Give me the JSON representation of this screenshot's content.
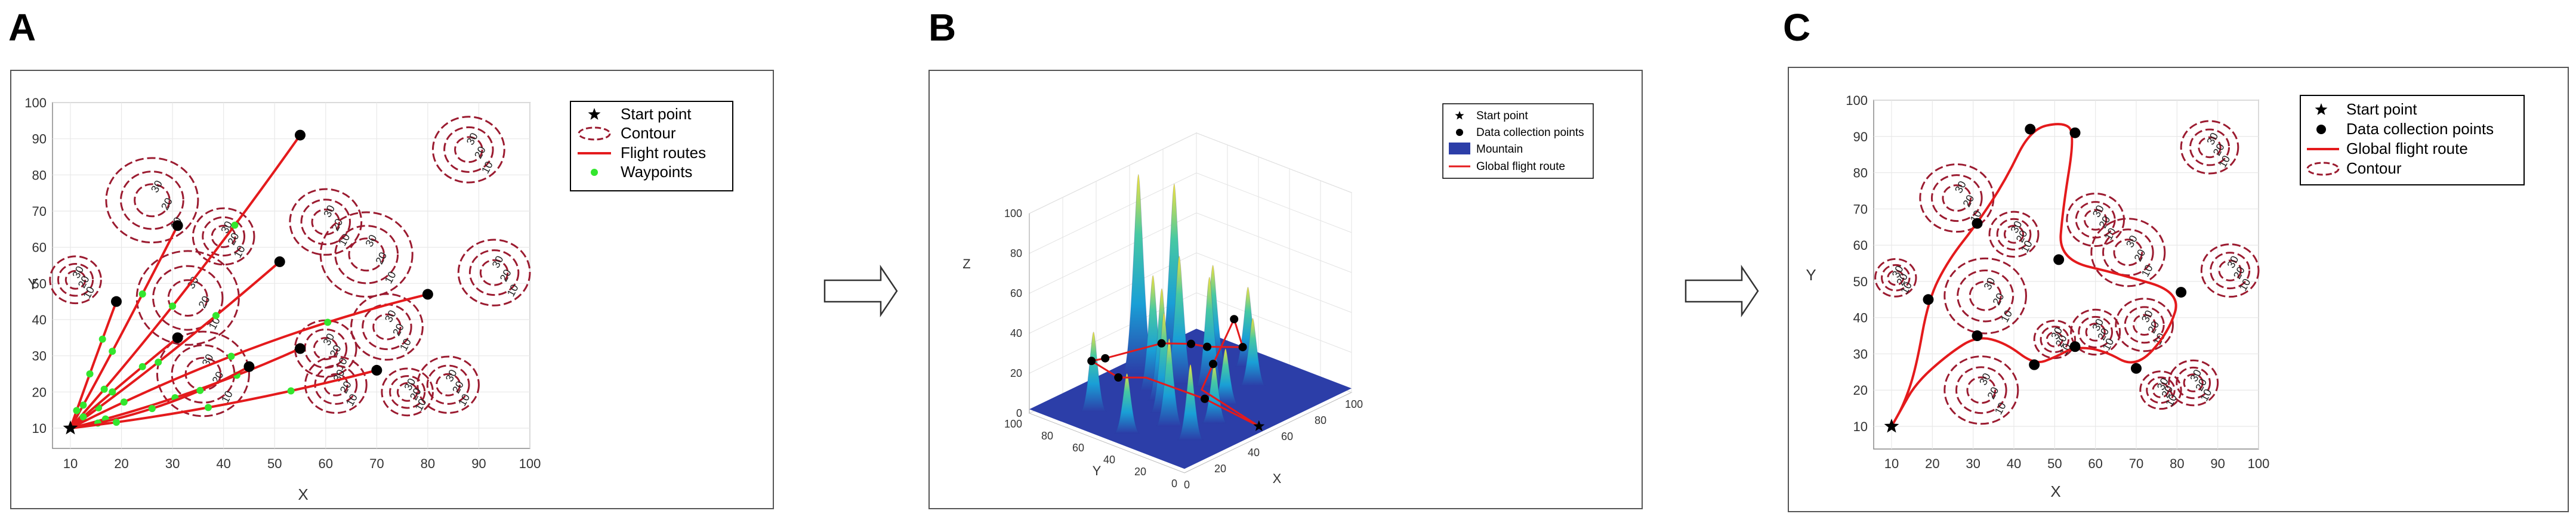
{
  "panels": {
    "a": {
      "letter": "A"
    },
    "b": {
      "letter": "B"
    },
    "c": {
      "letter": "C"
    }
  },
  "colors": {
    "route": "#e41a1c",
    "contour": "#9b1b30",
    "waypoint": "#33e62e",
    "point": "#000000",
    "surface_low": "#2c3ea8",
    "surface_high": "#f5e43a"
  },
  "chart_data": [
    {
      "panel": "A",
      "type": "line",
      "xlabel": "X",
      "ylabel": "Y",
      "xlim": [
        0,
        100
      ],
      "ylim": [
        0,
        100
      ],
      "xticks": [
        "10",
        "20",
        "30",
        "40",
        "50",
        "60",
        "70",
        "80",
        "90",
        "100"
      ],
      "yticks": [
        "10",
        "20",
        "30",
        "40",
        "50",
        "60",
        "70",
        "80",
        "90",
        "100"
      ],
      "grid": true,
      "legend_position": "top-right",
      "legend": [
        "Start point",
        "Contour",
        "Flight routes",
        "Waypoints"
      ],
      "start": [
        10,
        10
      ],
      "contour_level_labels": [
        "10",
        "20",
        "30"
      ],
      "contours": [
        {
          "cx": 26,
          "cy": 73,
          "r": 9
        },
        {
          "cx": 40,
          "cy": 63,
          "r": 6
        },
        {
          "cx": 11,
          "cy": 51,
          "r": 5
        },
        {
          "cx": 33,
          "cy": 46,
          "r": 10
        },
        {
          "cx": 36,
          "cy": 25,
          "r": 9
        },
        {
          "cx": 60,
          "cy": 67,
          "r": 7
        },
        {
          "cx": 68,
          "cy": 58,
          "r": 9
        },
        {
          "cx": 72,
          "cy": 38,
          "r": 7
        },
        {
          "cx": 60,
          "cy": 32,
          "r": 6
        },
        {
          "cx": 62,
          "cy": 22,
          "r": 6
        },
        {
          "cx": 93,
          "cy": 53,
          "r": 7
        },
        {
          "cx": 88,
          "cy": 87,
          "r": 7
        },
        {
          "cx": 84,
          "cy": 22,
          "r": 6
        },
        {
          "cx": 76,
          "cy": 20,
          "r": 5
        }
      ],
      "routes": [
        {
          "end": [
            55,
            91
          ],
          "ctrl": [
            32,
            45
          ]
        },
        {
          "end": [
            31,
            66
          ],
          "ctrl": [
            18,
            30
          ]
        },
        {
          "end": [
            19,
            45
          ],
          "ctrl": [
            14,
            26
          ]
        },
        {
          "end": [
            51,
            56
          ],
          "ctrl": [
            28,
            28
          ]
        },
        {
          "end": [
            31,
            35
          ],
          "ctrl": [
            18,
            20
          ]
        },
        {
          "end": [
            55,
            32
          ],
          "ctrl": [
            33,
            18
          ]
        },
        {
          "end": [
            45,
            27
          ],
          "ctrl": [
            28,
            14
          ]
        },
        {
          "end": [
            70,
            26
          ],
          "ctrl": [
            40,
            15
          ]
        },
        {
          "end": [
            80,
            47
          ],
          "ctrl": [
            45,
            35
          ]
        }
      ]
    },
    {
      "panel": "B",
      "type": "surface",
      "xlabel": "X",
      "ylabel": "Y",
      "zlabel": "Z",
      "xlim": [
        0,
        100
      ],
      "ylim": [
        0,
        100
      ],
      "zlim": [
        0,
        100
      ],
      "xticks": [
        "0",
        "20",
        "40",
        "60",
        "80",
        "100"
      ],
      "yticks": [
        "0",
        "20",
        "40",
        "60",
        "80",
        "100"
      ],
      "zticks": [
        "0",
        "20",
        "40",
        "60",
        "80",
        "100"
      ],
      "grid": true,
      "legend_position": "top-right",
      "legend": [
        "Start point",
        "Data collection points",
        "Mountain",
        "Global flight route"
      ],
      "peaks": [
        {
          "x": 56,
          "y": 90,
          "h": 100
        },
        {
          "x": 70,
          "y": 82,
          "h": 92
        },
        {
          "x": 60,
          "y": 68,
          "h": 64
        },
        {
          "x": 44,
          "y": 62,
          "h": 56
        },
        {
          "x": 36,
          "y": 52,
          "h": 50
        },
        {
          "x": 48,
          "y": 72,
          "h": 58
        },
        {
          "x": 28,
          "y": 40,
          "h": 44
        },
        {
          "x": 66,
          "y": 55,
          "h": 55
        },
        {
          "x": 82,
          "y": 70,
          "h": 50
        },
        {
          "x": 18,
          "y": 78,
          "h": 40
        },
        {
          "x": 24,
          "y": 22,
          "h": 38
        },
        {
          "x": 42,
          "y": 26,
          "h": 30
        },
        {
          "x": 58,
          "y": 36,
          "h": 28
        },
        {
          "x": 78,
          "y": 40,
          "h": 34
        },
        {
          "x": 90,
          "y": 56,
          "h": 40
        },
        {
          "x": 12,
          "y": 50,
          "h": 30
        }
      ]
    },
    {
      "panel": "C",
      "type": "line",
      "xlabel": "X",
      "ylabel": "Y",
      "xlim": [
        0,
        100
      ],
      "ylim": [
        0,
        100
      ],
      "xticks": [
        "10",
        "20",
        "30",
        "40",
        "50",
        "60",
        "70",
        "80",
        "90",
        "100"
      ],
      "yticks": [
        "10",
        "20",
        "30",
        "40",
        "50",
        "60",
        "70",
        "80",
        "90",
        "100"
      ],
      "grid": true,
      "legend_position": "top-right",
      "legend": [
        "Start point",
        "Data collection points",
        "Global flight route",
        "Contour"
      ],
      "start": [
        10,
        10
      ],
      "data_points": [
        [
          19,
          45
        ],
        [
          31,
          66
        ],
        [
          44,
          92
        ],
        [
          55,
          91
        ],
        [
          51,
          56
        ],
        [
          81,
          47
        ],
        [
          70,
          26
        ],
        [
          55,
          32
        ],
        [
          45,
          27
        ],
        [
          31,
          35
        ]
      ],
      "route": [
        [
          10,
          10
        ],
        [
          13,
          16
        ],
        [
          16,
          26
        ],
        [
          19,
          45
        ],
        [
          24,
          56
        ],
        [
          31,
          66
        ],
        [
          38,
          78
        ],
        [
          44,
          92
        ],
        [
          52,
          94
        ],
        [
          55,
          91
        ],
        [
          52,
          70
        ],
        [
          51,
          56
        ],
        [
          66,
          52
        ],
        [
          81,
          47
        ],
        [
          78,
          36
        ],
        [
          70,
          26
        ],
        [
          62,
          31
        ],
        [
          55,
          32
        ],
        [
          50,
          29
        ],
        [
          45,
          27
        ],
        [
          38,
          33
        ],
        [
          31,
          35
        ],
        [
          24,
          30
        ],
        [
          16,
          22
        ],
        [
          12,
          14
        ],
        [
          10,
          10
        ]
      ],
      "contour_level_labels": [
        "10",
        "20",
        "30"
      ],
      "contours": [
        {
          "cx": 26,
          "cy": 73,
          "r": 9
        },
        {
          "cx": 40,
          "cy": 63,
          "r": 6
        },
        {
          "cx": 11,
          "cy": 51,
          "r": 5
        },
        {
          "cx": 33,
          "cy": 46,
          "r": 10
        },
        {
          "cx": 32,
          "cy": 20,
          "r": 9
        },
        {
          "cx": 60,
          "cy": 67,
          "r": 7
        },
        {
          "cx": 68,
          "cy": 58,
          "r": 9
        },
        {
          "cx": 72,
          "cy": 38,
          "r": 7
        },
        {
          "cx": 60,
          "cy": 36,
          "r": 6
        },
        {
          "cx": 50,
          "cy": 34,
          "r": 5
        },
        {
          "cx": 93,
          "cy": 53,
          "r": 7
        },
        {
          "cx": 88,
          "cy": 87,
          "r": 7
        },
        {
          "cx": 84,
          "cy": 22,
          "r": 6
        },
        {
          "cx": 76,
          "cy": 20,
          "r": 5
        }
      ]
    }
  ]
}
